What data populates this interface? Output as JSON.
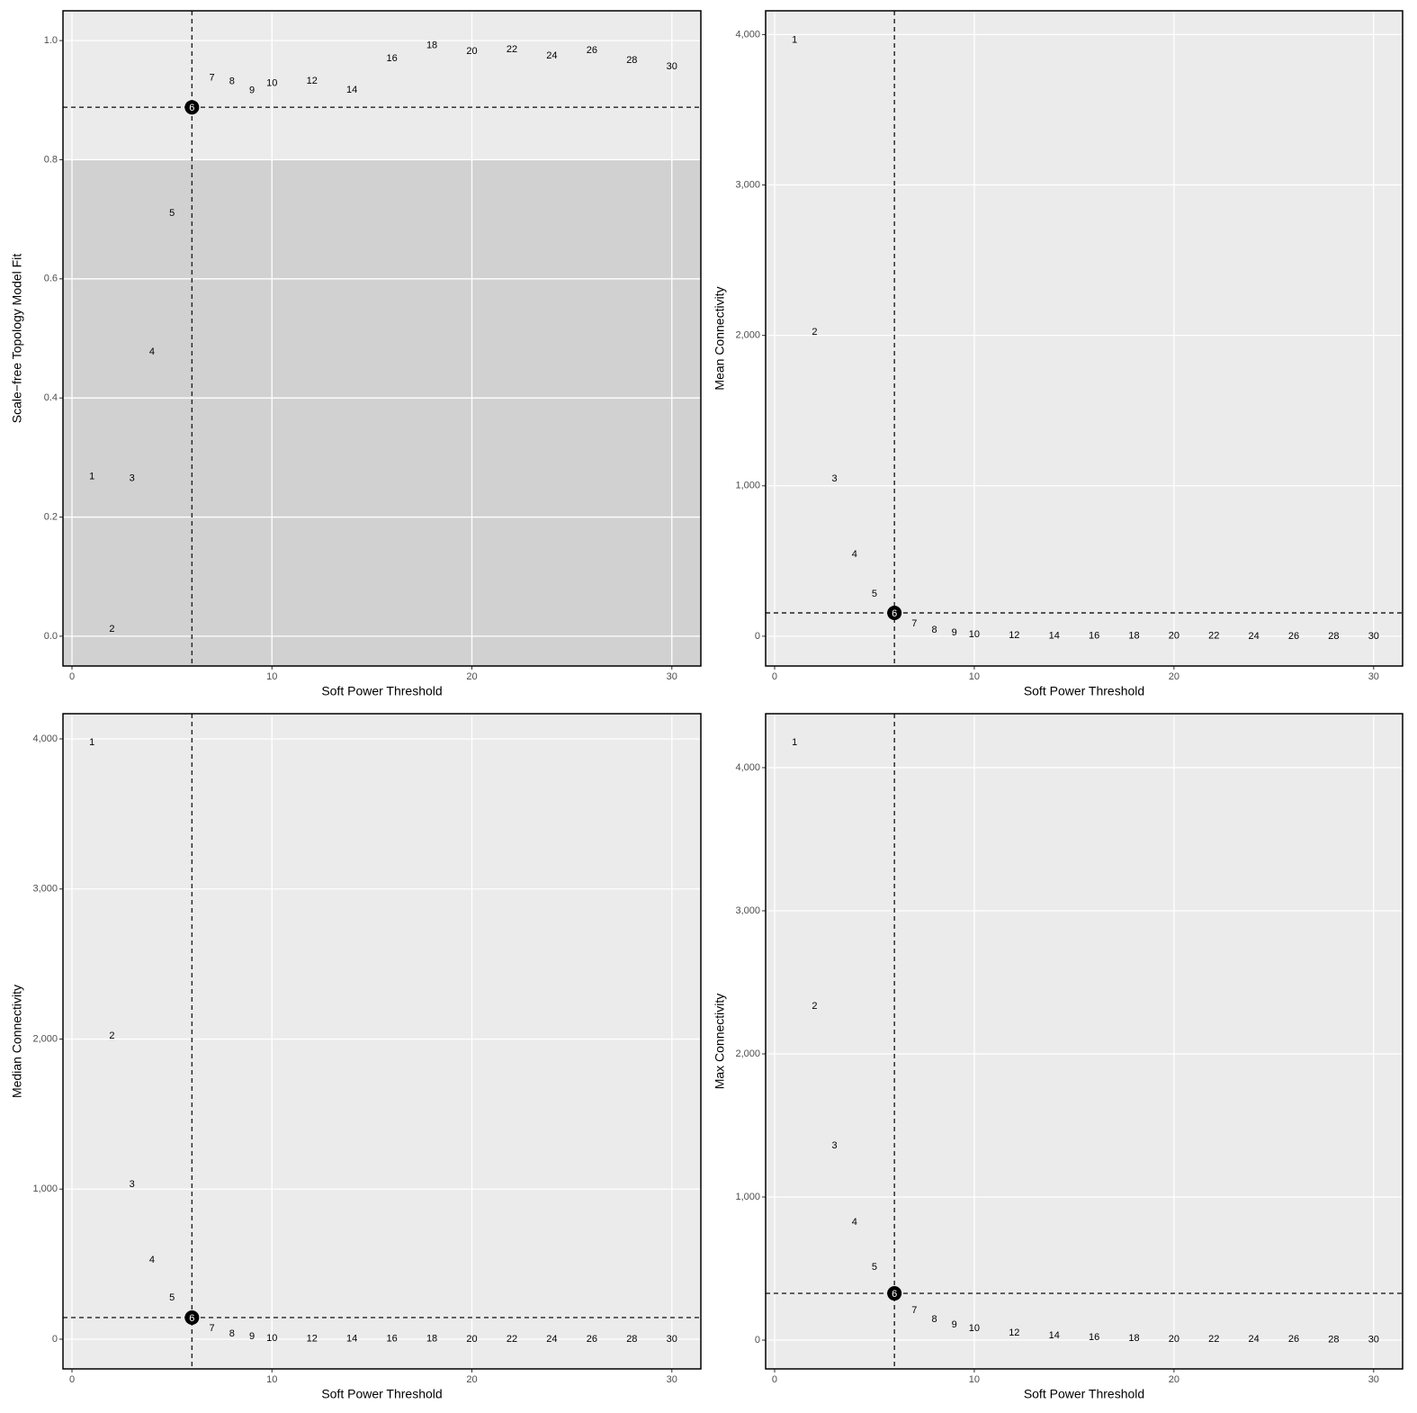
{
  "chart_data": [
    {
      "type": "scatter",
      "x_label": "Soft Power Threshold",
      "y_label": "Scale−free Topology Model Fit",
      "x": [
        1,
        2,
        3,
        4,
        5,
        6,
        7,
        8,
        9,
        10,
        12,
        14,
        16,
        18,
        20,
        22,
        24,
        26,
        28,
        30
      ],
      "values": [
        0.268,
        0.012,
        0.265,
        0.477,
        0.71,
        0.888,
        0.937,
        0.931,
        0.916,
        0.928,
        0.932,
        0.917,
        0.97,
        0.992,
        0.982,
        0.985,
        0.974,
        0.983,
        0.967,
        0.956
      ],
      "xlim": [
        -0.45,
        31.45
      ],
      "ylim": [
        -0.05,
        1.05
      ],
      "xticks": [
        0,
        10,
        20,
        30
      ],
      "yticks": [
        {
          "value": 0,
          "label": "0.0"
        },
        0.2,
        0.4,
        0.6,
        0.8,
        {
          "value": 1,
          "label": "1.0"
        }
      ],
      "grid": true,
      "highlight": 6,
      "shade_below": 0.8
    },
    {
      "type": "scatter",
      "x_label": "Soft Power Threshold",
      "y_label": "Mean Connectivity",
      "x": [
        1,
        2,
        3,
        4,
        5,
        6,
        7,
        8,
        9,
        10,
        12,
        14,
        16,
        18,
        20,
        22,
        24,
        26,
        28,
        30
      ],
      "values": [
        3964,
        2021,
        1046,
        544,
        281,
        155,
        84,
        42,
        24,
        12,
        6,
        3,
        2,
        1,
        1,
        1,
        0,
        0,
        0,
        0
      ],
      "xlim": [
        -0.45,
        31.45
      ],
      "ylim": [
        -198,
        4158
      ],
      "xticks": [
        0,
        10,
        20,
        30
      ],
      "yticks": [
        0,
        {
          "value": 1000,
          "label": "1,000"
        },
        {
          "value": 2000,
          "label": "2,000"
        },
        {
          "value": 3000,
          "label": "3,000"
        },
        {
          "value": 4000,
          "label": "4,000"
        }
      ],
      "grid": true,
      "highlight": 6
    },
    {
      "type": "scatter",
      "x_label": "Soft Power Threshold",
      "y_label": "Median Connectivity",
      "x": [
        1,
        2,
        3,
        4,
        5,
        6,
        7,
        8,
        9,
        10,
        12,
        14,
        16,
        18,
        20,
        22,
        24,
        26,
        28,
        30
      ],
      "values": [
        3976,
        2021,
        1031,
        528,
        276,
        144,
        72,
        36,
        18,
        6,
        3,
        2,
        1,
        1,
        0,
        0,
        0,
        0,
        0,
        0
      ],
      "xlim": [
        -0.45,
        31.45
      ],
      "ylim": [
        -198,
        4168
      ],
      "xticks": [
        0,
        10,
        20,
        30
      ],
      "yticks": [
        0,
        {
          "value": 1000,
          "label": "1,000"
        },
        {
          "value": 2000,
          "label": "2,000"
        },
        {
          "value": 3000,
          "label": "3,000"
        },
        {
          "value": 4000,
          "label": "4,000"
        }
      ],
      "grid": true,
      "highlight": 6
    },
    {
      "type": "scatter",
      "x_label": "Soft Power Threshold",
      "y_label": "Max Connectivity",
      "x": [
        1,
        2,
        3,
        4,
        5,
        6,
        7,
        8,
        9,
        10,
        12,
        14,
        16,
        18,
        20,
        22,
        24,
        26,
        28,
        30
      ],
      "values": [
        4176,
        2333,
        1358,
        824,
        509,
        327,
        208,
        145,
        107,
        82,
        50,
        31,
        19,
        13,
        6,
        6,
        6,
        6,
        3,
        3
      ],
      "xlim": [
        -0.45,
        31.45
      ],
      "ylim": [
        -201,
        4377
      ],
      "xticks": [
        0,
        10,
        20,
        30
      ],
      "yticks": [
        0,
        {
          "value": 1000,
          "label": "1,000"
        },
        {
          "value": 2000,
          "label": "2,000"
        },
        {
          "value": 3000,
          "label": "3,000"
        },
        {
          "value": 4000,
          "label": "4,000"
        }
      ],
      "grid": true,
      "highlight": 6
    }
  ]
}
